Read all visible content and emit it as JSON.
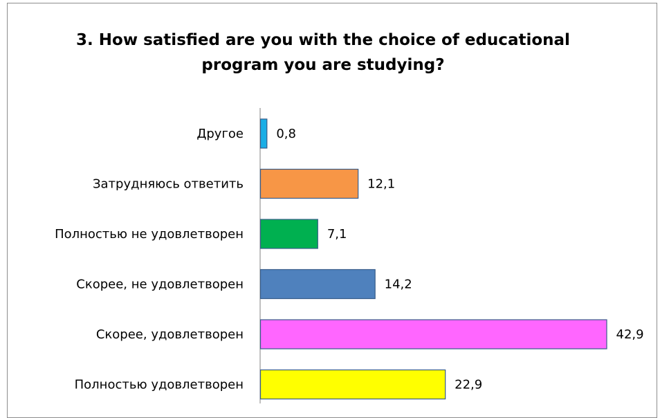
{
  "chart_data": {
    "type": "bar",
    "orientation": "horizontal",
    "title_lines": [
      "3. How satisfied are you with the choice of educational",
      "program you are studying?"
    ],
    "categories": [
      "Другое",
      "Затрудняюсь ответить",
      "Полностью не удовлетворен",
      "Скорее, не удовлетворен",
      "Скорее, удовлетворен",
      "Полностью удовлетворен"
    ],
    "values": [
      0.8,
      12.1,
      7.1,
      14.2,
      42.9,
      22.9
    ],
    "value_labels": [
      "0,8",
      "12,1",
      "7,1",
      "14,2",
      "42,9",
      "22,9"
    ],
    "colors": [
      "#1aaee6",
      "#f79646",
      "#00b050",
      "#4f81bd",
      "#ff66ff",
      "#ffff00"
    ],
    "xlim": [
      0,
      45
    ],
    "grid": false,
    "legend": "none"
  }
}
